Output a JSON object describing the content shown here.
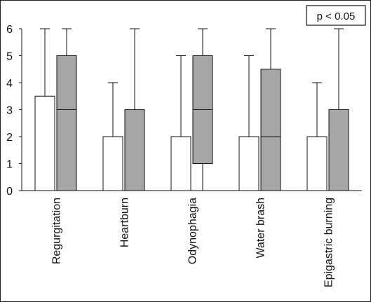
{
  "chart_data": {
    "type": "box",
    "categories": [
      "Regurgitation",
      "Heartburn",
      "Odynophagia",
      "Water brash",
      "Epigastric burning"
    ],
    "ylim": [
      0,
      6
    ],
    "yticks": [
      "0",
      "1",
      "2",
      "3",
      "4",
      "5",
      "6"
    ],
    "annotation": "p < 0.05",
    "series": [
      {
        "fill": "#ffffff",
        "boxes": [
          {
            "min": 0,
            "q1": 0,
            "median": 3.5,
            "q3": 3.5,
            "max": 6
          },
          {
            "min": 0,
            "q1": 0,
            "median": 2,
            "q3": 2,
            "max": 4
          },
          {
            "min": 0,
            "q1": 0,
            "median": 2,
            "q3": 2,
            "max": 5
          },
          {
            "min": 0,
            "q1": 0,
            "median": 2,
            "q3": 2,
            "max": 5
          },
          {
            "min": 0,
            "q1": 0,
            "median": 2,
            "q3": 2,
            "max": 4
          }
        ]
      },
      {
        "fill": "#a6a6a6",
        "boxes": [
          {
            "min": 0,
            "q1": 0,
            "median": 3,
            "q3": 5,
            "max": 6
          },
          {
            "min": 0,
            "q1": 0,
            "median": 3,
            "q3": 3,
            "max": 6
          },
          {
            "min": 0,
            "q1": 1,
            "median": 3,
            "q3": 5,
            "max": 6
          },
          {
            "min": 0,
            "q1": 0,
            "median": 2,
            "q3": 4.5,
            "max": 6
          },
          {
            "min": 0,
            "q1": 0,
            "median": 3,
            "q3": 3,
            "max": 6
          }
        ]
      }
    ]
  }
}
